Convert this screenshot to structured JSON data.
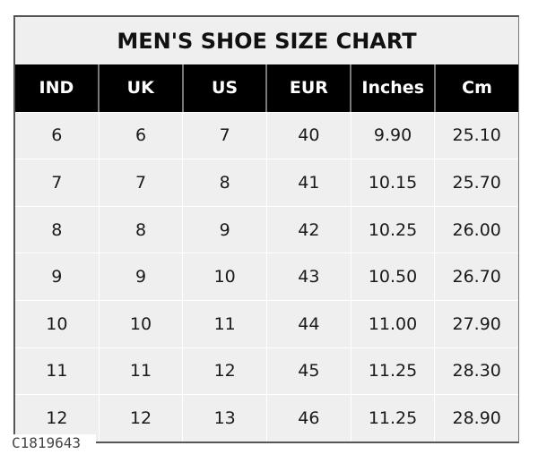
{
  "title": "MEN'S SHOE SIZE CHART",
  "headers": [
    "IND",
    "UK",
    "US",
    "EUR",
    "Inches",
    "Cm"
  ],
  "rows": [
    [
      "6",
      "6",
      "7",
      "40",
      "9.90",
      "25.10"
    ],
    [
      "7",
      "7",
      "8",
      "41",
      "10.15",
      "25.70"
    ],
    [
      "8",
      "8",
      "9",
      "42",
      "10.25",
      "26.00"
    ],
    [
      "9",
      "9",
      "10",
      "43",
      "10.50",
      "26.70"
    ],
    [
      "10",
      "10",
      "11",
      "44",
      "11.00",
      "27.90"
    ],
    [
      "11",
      "11",
      "12",
      "45",
      "11.25",
      "28.30"
    ],
    [
      "12",
      "12",
      "13",
      "46",
      "11.25",
      "28.90"
    ]
  ],
  "watermark": "C1819643"
}
